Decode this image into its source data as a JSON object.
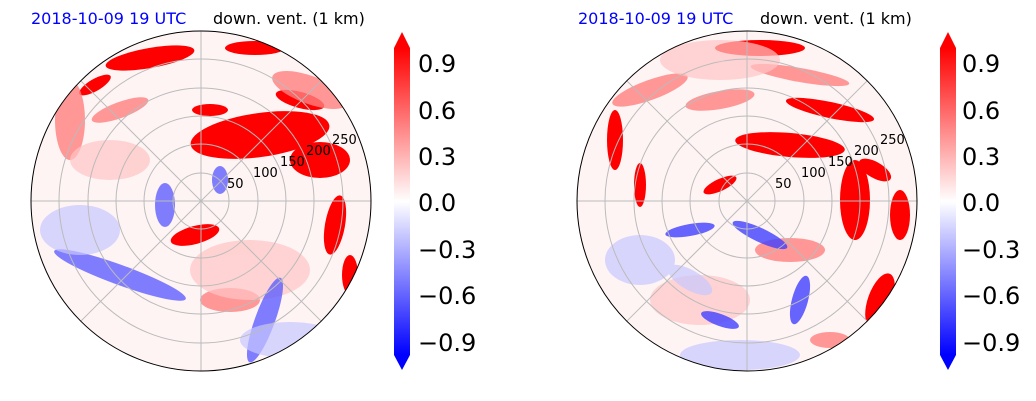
{
  "chart_data": [
    {
      "type": "polar-contourf",
      "title_left": "2018-10-09 19 UTC",
      "title_right": "down. vent. (1 km)",
      "radial_ticks": [
        50,
        100,
        150,
        200,
        250
      ],
      "colorbar": {
        "ticks": [
          "0.9",
          "0.6",
          "0.3",
          "0.0",
          "−0.3",
          "−0.6",
          "−0.9"
        ],
        "range": [
          -1.05,
          1.05
        ],
        "levels": 21,
        "extend": "both",
        "cmap": "bwr"
      },
      "colors": {
        "positive": "#ff0000",
        "negative": "#0000ff",
        "zero": "#ffffff",
        "title_time": "#0000ff"
      }
    },
    {
      "type": "polar-contourf",
      "title_left": "2018-10-09 19 UTC",
      "title_right": "down. vent. (1 km)",
      "radial_ticks": [
        50,
        100,
        150,
        200,
        250
      ],
      "colorbar": {
        "ticks": [
          "0.9",
          "0.6",
          "0.3",
          "0.0",
          "−0.3",
          "−0.6",
          "−0.9"
        ],
        "range": [
          -1.05,
          1.05
        ],
        "levels": 21,
        "extend": "both",
        "cmap": "bwr"
      },
      "colors": {
        "positive": "#ff0000",
        "negative": "#0000ff",
        "zero": "#ffffff",
        "title_time": "#0000ff"
      }
    }
  ]
}
